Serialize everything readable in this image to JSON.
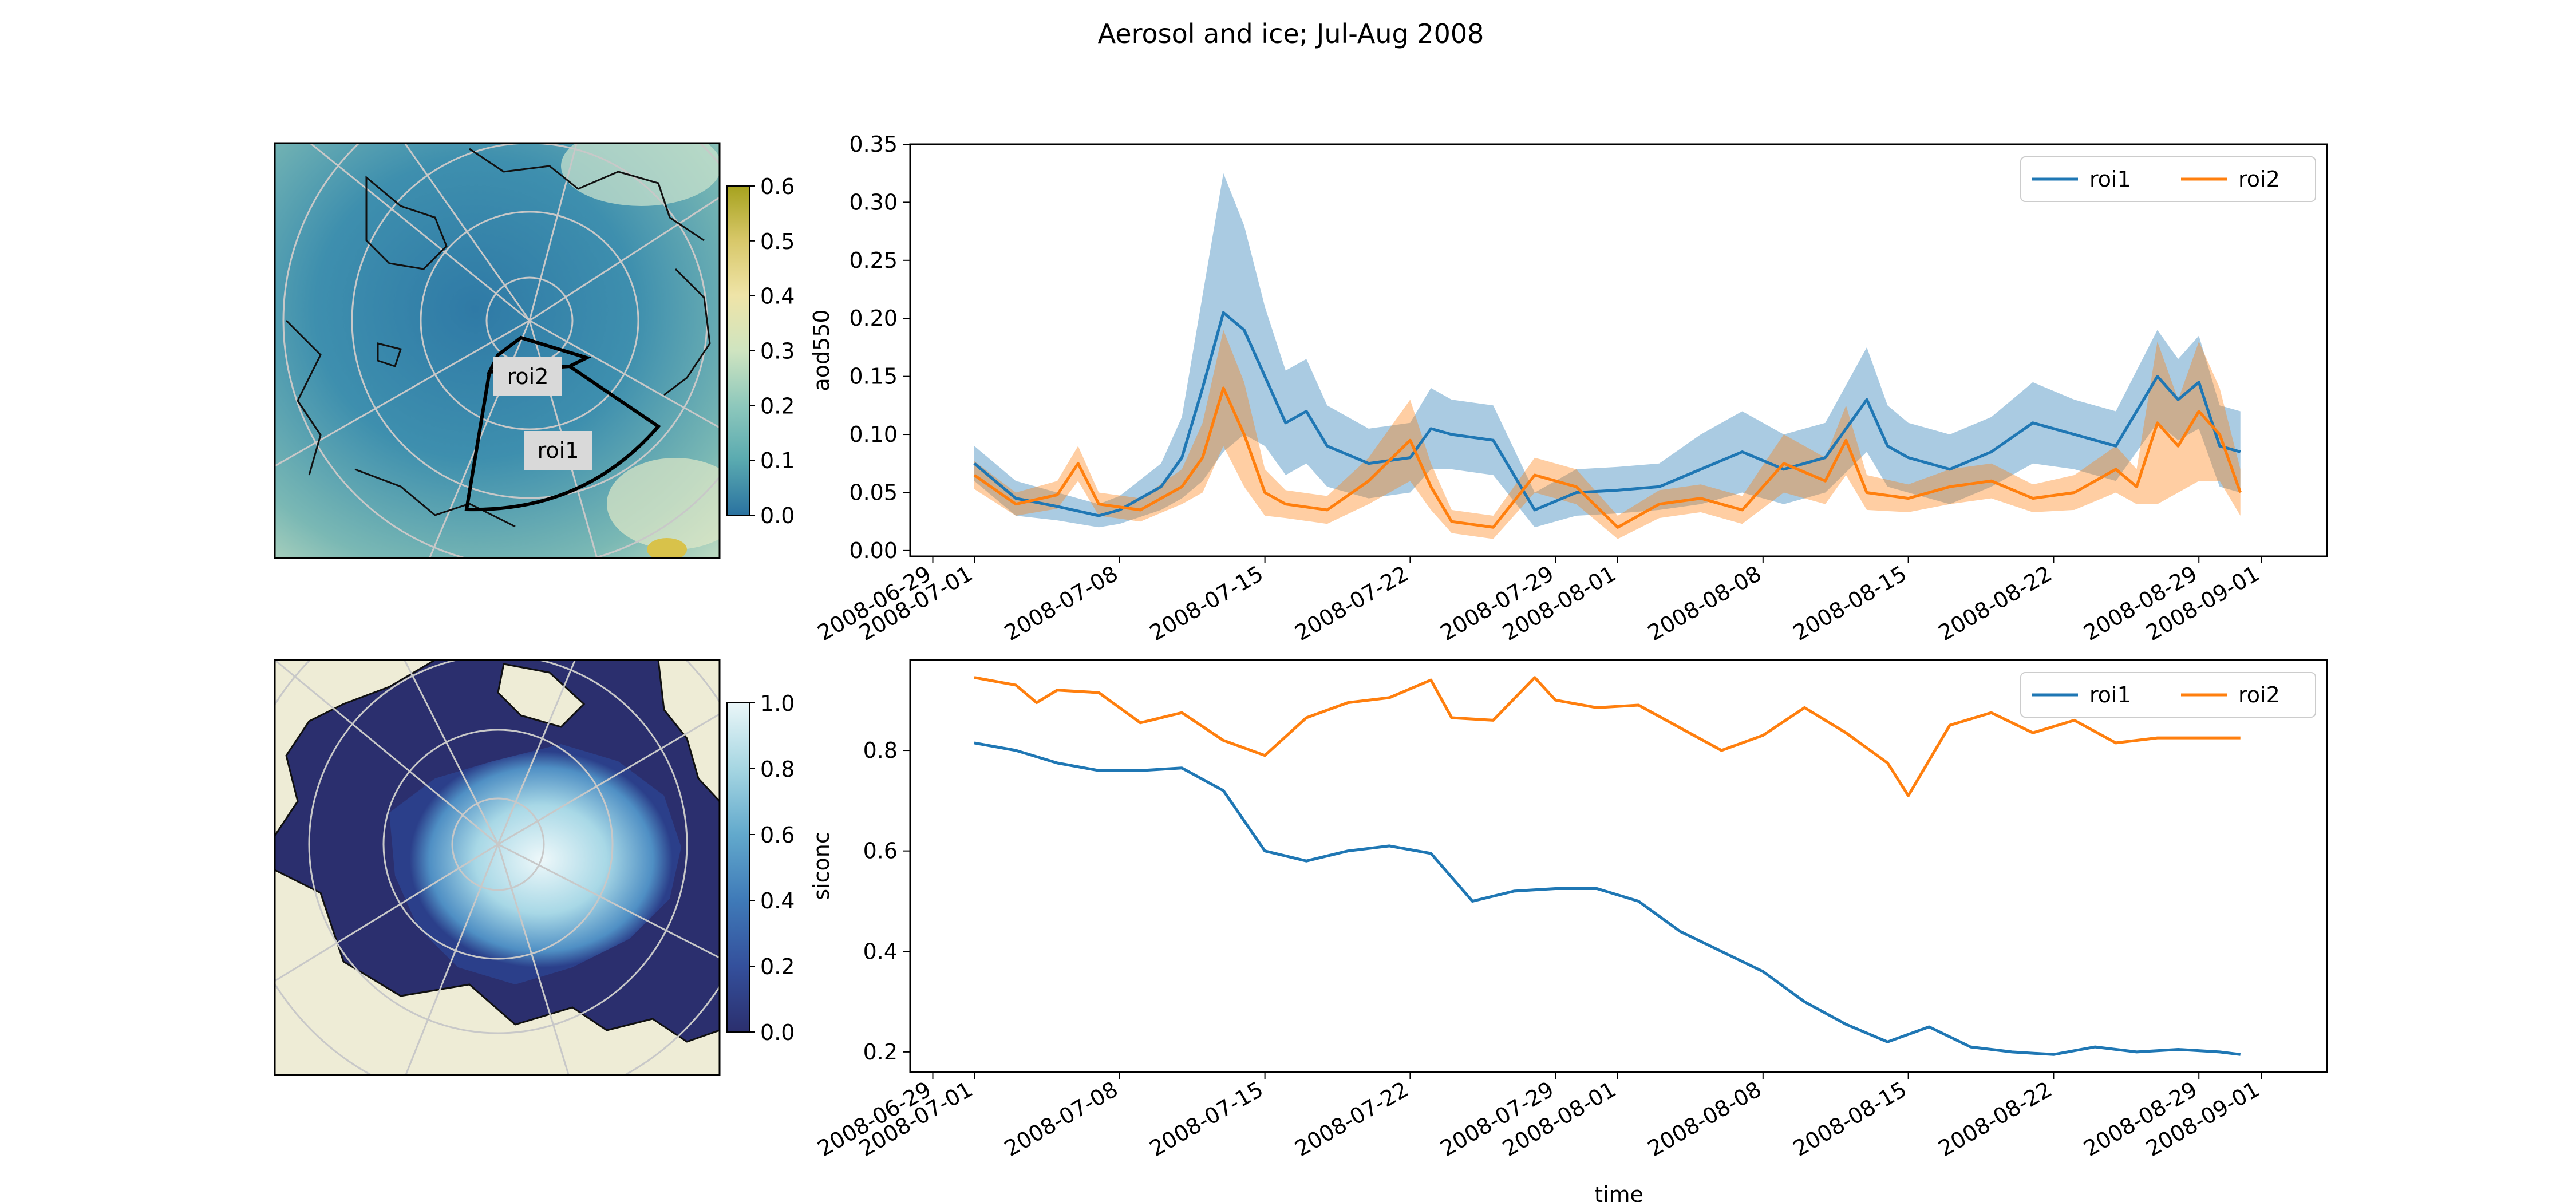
{
  "figure": {
    "title": "Aerosol and ice; Jul-Aug 2008"
  },
  "maps": {
    "aod_colorbar": {
      "ticks": [
        "0.0",
        "0.1",
        "0.2",
        "0.3",
        "0.4",
        "0.5",
        "0.6"
      ],
      "colors": [
        "#2a72a0",
        "#5aaab0",
        "#8ec8bc",
        "#cfe4c0",
        "#efe4a8",
        "#d8c86a",
        "#a6a21e"
      ]
    },
    "ice_colorbar": {
      "ticks": [
        "0.0",
        "0.2",
        "0.4",
        "0.6",
        "0.8",
        "1.0"
      ],
      "colors": [
        "#2b2f6e",
        "#34509c",
        "#3f7ab8",
        "#62a9cc",
        "#a6d6e2",
        "#eaf6f8"
      ]
    },
    "roi_labels": [
      "roi1",
      "roi2"
    ]
  },
  "chart_data": [
    {
      "type": "line",
      "ylabel": "aod550",
      "xlabel": "",
      "ylim": [
        -0.005,
        0.35
      ],
      "yticks": [
        "0.00",
        "0.05",
        "0.10",
        "0.15",
        "0.20",
        "0.25",
        "0.30",
        "0.35"
      ],
      "xticks": [
        "2008-06-29",
        "2008-07-01",
        "2008-07-08",
        "2008-07-15",
        "2008-07-22",
        "2008-07-29",
        "2008-08-01",
        "2008-08-08",
        "2008-08-15",
        "2008-08-22",
        "2008-08-29",
        "2008-09-01"
      ],
      "legend": {
        "position": "top-right",
        "entries": [
          "roi1",
          "roi2"
        ]
      },
      "series": [
        {
          "name": "roi1",
          "color": "#1f77b4",
          "days": [
            1,
            3,
            5,
            7,
            8,
            10,
            11,
            12,
            13,
            14,
            15,
            16,
            17,
            18,
            20,
            22,
            23,
            24,
            26,
            28,
            30,
            32,
            34,
            36,
            38,
            40,
            42,
            44,
            45,
            46,
            48,
            50,
            52,
            54,
            56,
            58,
            59,
            60,
            61,
            62
          ],
          "values": [
            0.075,
            0.045,
            0.038,
            0.03,
            0.035,
            0.055,
            0.08,
            0.14,
            0.205,
            0.19,
            0.15,
            0.11,
            0.12,
            0.09,
            0.075,
            0.08,
            0.105,
            0.1,
            0.095,
            0.035,
            0.05,
            0.052,
            0.055,
            0.07,
            0.085,
            0.07,
            0.08,
            0.13,
            0.09,
            0.08,
            0.07,
            0.085,
            0.11,
            0.1,
            0.09,
            0.15,
            0.13,
            0.145,
            0.09,
            0.085
          ],
          "band_halfwidth": [
            0.015,
            0.015,
            0.012,
            0.01,
            0.012,
            0.02,
            0.035,
            0.08,
            0.12,
            0.09,
            0.06,
            0.045,
            0.045,
            0.035,
            0.03,
            0.03,
            0.035,
            0.03,
            0.03,
            0.015,
            0.02,
            0.02,
            0.02,
            0.03,
            0.035,
            0.03,
            0.03,
            0.045,
            0.035,
            0.03,
            0.03,
            0.03,
            0.035,
            0.03,
            0.03,
            0.04,
            0.035,
            0.04,
            0.035,
            0.035
          ]
        },
        {
          "name": "roi2",
          "color": "#ff7f0e",
          "days": [
            1,
            3,
            5,
            6,
            7,
            9,
            11,
            12,
            13,
            14,
            15,
            16,
            18,
            20,
            22,
            23,
            24,
            26,
            28,
            30,
            32,
            34,
            36,
            38,
            40,
            42,
            43,
            44,
            46,
            48,
            50,
            52,
            54,
            56,
            57,
            58,
            59,
            60,
            61,
            62
          ],
          "values": [
            0.065,
            0.04,
            0.048,
            0.075,
            0.04,
            0.035,
            0.055,
            0.08,
            0.14,
            0.1,
            0.05,
            0.04,
            0.035,
            0.06,
            0.095,
            0.055,
            0.025,
            0.02,
            0.065,
            0.055,
            0.02,
            0.04,
            0.045,
            0.035,
            0.075,
            0.06,
            0.095,
            0.05,
            0.045,
            0.055,
            0.06,
            0.045,
            0.05,
            0.07,
            0.055,
            0.11,
            0.09,
            0.12,
            0.1,
            0.05
          ],
          "band_halfwidth": [
            0.012,
            0.01,
            0.012,
            0.015,
            0.01,
            0.01,
            0.015,
            0.03,
            0.05,
            0.045,
            0.02,
            0.012,
            0.012,
            0.02,
            0.035,
            0.02,
            0.01,
            0.01,
            0.015,
            0.015,
            0.01,
            0.012,
            0.012,
            0.012,
            0.025,
            0.02,
            0.03,
            0.015,
            0.012,
            0.015,
            0.015,
            0.012,
            0.015,
            0.02,
            0.015,
            0.07,
            0.04,
            0.06,
            0.04,
            0.02
          ]
        }
      ]
    },
    {
      "type": "line",
      "ylabel": "siconc",
      "xlabel": "time",
      "ylim": [
        0.16,
        0.98
      ],
      "yticks": [
        "0.2",
        "0.4",
        "0.6",
        "0.8"
      ],
      "ytick_values": [
        0.2,
        0.4,
        0.6,
        0.8
      ],
      "xticks": [
        "2008-06-29",
        "2008-07-01",
        "2008-07-08",
        "2008-07-15",
        "2008-07-22",
        "2008-07-29",
        "2008-08-01",
        "2008-08-08",
        "2008-08-15",
        "2008-08-22",
        "2008-08-29",
        "2008-09-01"
      ],
      "legend": {
        "position": "top-right",
        "entries": [
          "roi1",
          "roi2"
        ]
      },
      "series": [
        {
          "name": "roi1",
          "color": "#1f77b4",
          "days": [
            1,
            3,
            5,
            7,
            9,
            11,
            13,
            15,
            17,
            19,
            21,
            23,
            25,
            27,
            29,
            31,
            33,
            35,
            37,
            39,
            41,
            43,
            45,
            47,
            49,
            51,
            53,
            55,
            57,
            59,
            61,
            62
          ],
          "values": [
            0.815,
            0.8,
            0.775,
            0.76,
            0.76,
            0.765,
            0.72,
            0.6,
            0.58,
            0.6,
            0.61,
            0.595,
            0.5,
            0.52,
            0.525,
            0.525,
            0.5,
            0.44,
            0.4,
            0.36,
            0.3,
            0.255,
            0.22,
            0.25,
            0.21,
            0.2,
            0.195,
            0.21,
            0.2,
            0.205,
            0.2,
            0.195
          ]
        },
        {
          "name": "roi2",
          "color": "#ff7f0e",
          "days": [
            1,
            3,
            4,
            5,
            7,
            9,
            11,
            13,
            15,
            17,
            19,
            21,
            23,
            24,
            26,
            28,
            29,
            31,
            33,
            35,
            37,
            39,
            41,
            43,
            45,
            46,
            48,
            50,
            52,
            54,
            56,
            58,
            60,
            62
          ],
          "values": [
            0.945,
            0.93,
            0.895,
            0.92,
            0.915,
            0.855,
            0.875,
            0.82,
            0.79,
            0.865,
            0.895,
            0.905,
            0.94,
            0.865,
            0.86,
            0.945,
            0.9,
            0.885,
            0.89,
            0.845,
            0.8,
            0.83,
            0.885,
            0.835,
            0.775,
            0.71,
            0.85,
            0.875,
            0.835,
            0.86,
            0.815,
            0.825,
            0.825,
            0.825
          ]
        }
      ]
    }
  ]
}
